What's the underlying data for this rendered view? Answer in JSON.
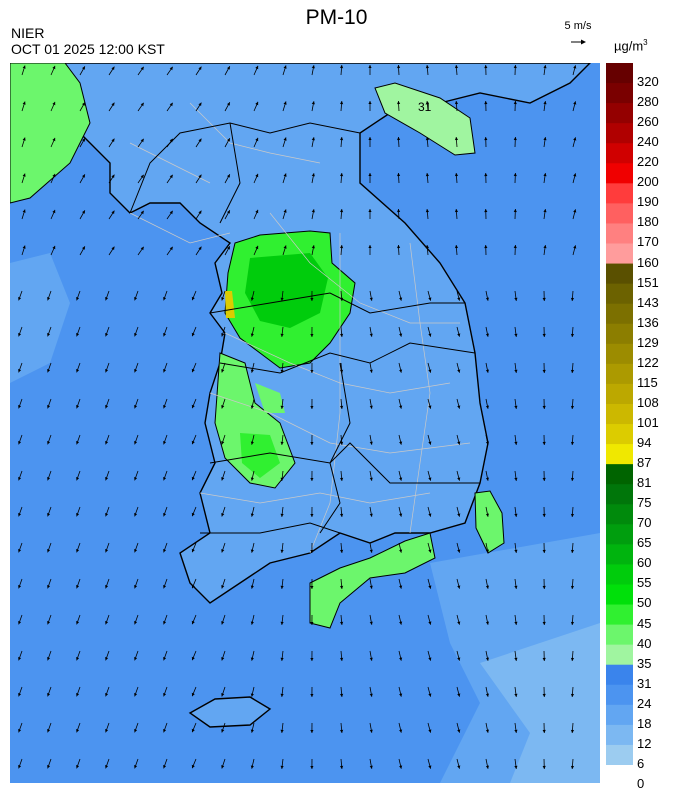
{
  "header": {
    "title": "PM-10",
    "organization": "NIER",
    "timestamp": "OCT 01 2025 12:00 KST",
    "wind_scale_label": "5 m/s",
    "unit_base": "µg/m",
    "unit_exp": "3"
  },
  "map": {
    "region": "Korean Peninsula",
    "contour_label": "31",
    "land_line_color": "#000000",
    "admin_line_color": "#c9c9c9"
  },
  "legend": {
    "ticks": [
      "320",
      "280",
      "260",
      "240",
      "220",
      "200",
      "190",
      "180",
      "170",
      "160",
      "151",
      "143",
      "136",
      "129",
      "122",
      "115",
      "108",
      "101",
      "94",
      "87",
      "81",
      "75",
      "70",
      "65",
      "60",
      "55",
      "50",
      "45",
      "40",
      "35",
      "31",
      "24",
      "18",
      "12",
      "6",
      "0"
    ],
    "colors": [
      "#660000",
      "#7a0000",
      "#940000",
      "#b00000",
      "#d00000",
      "#f00000",
      "#ff3c3c",
      "#ff6060",
      "#ff8080",
      "#ff9c9c",
      "#5a5000",
      "#6c6200",
      "#7c7000",
      "#8c7e00",
      "#9c8c00",
      "#ac9a00",
      "#bca800",
      "#ccb800",
      "#dccc00",
      "#f0e800",
      "#006400",
      "#00760a",
      "#008a0c",
      "#009e0e",
      "#00b40e",
      "#00cc0c",
      "#00e00a",
      "#30f030",
      "#6cf66c",
      "#a0f5a0",
      "#3a84ec",
      "#4c94f0",
      "#62a6f2",
      "#7cb8f2",
      "#9cccf0"
    ]
  }
}
